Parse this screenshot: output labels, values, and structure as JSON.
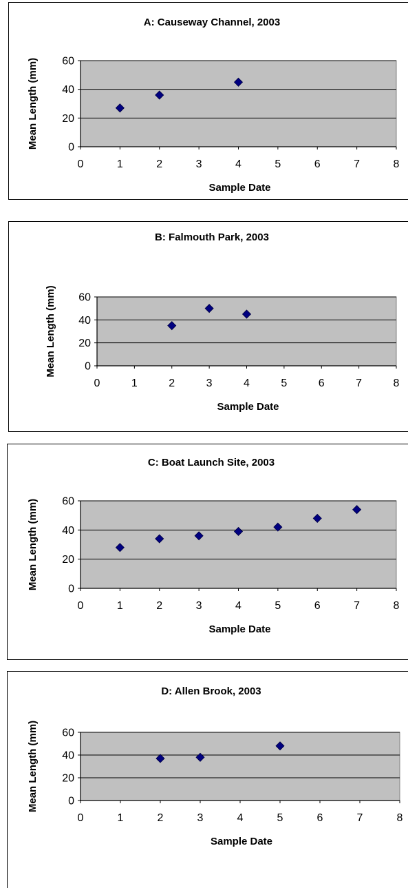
{
  "chart_data": [
    {
      "type": "scatter",
      "title": "A:  Causeway Channel, 2003",
      "xlabel": "Sample Date",
      "ylabel": "Mean Length (mm)",
      "xlim": [
        0,
        8
      ],
      "ylim": [
        0,
        60
      ],
      "xticks": [
        0,
        1,
        2,
        3,
        4,
        5,
        6,
        7,
        8
      ],
      "yticks": [
        0,
        20,
        40,
        60
      ],
      "grid": true,
      "legend": "none",
      "marker_color": "#000080",
      "plot_bg": "#C0C0C0",
      "points": [
        {
          "x": 1,
          "y": 27
        },
        {
          "x": 2,
          "y": 36
        },
        {
          "x": 4,
          "y": 45
        }
      ]
    },
    {
      "type": "scatter",
      "title": "B: Falmouth Park, 2003",
      "xlabel": "Sample Date",
      "ylabel": "Mean Length (mm)",
      "xlim": [
        0,
        8
      ],
      "ylim": [
        0,
        60
      ],
      "xticks": [
        0,
        1,
        2,
        3,
        4,
        5,
        6,
        7,
        8
      ],
      "yticks": [
        0,
        20,
        40,
        60
      ],
      "grid": true,
      "legend": "none",
      "marker_color": "#000080",
      "plot_bg": "#C0C0C0",
      "points": [
        {
          "x": 2,
          "y": 35
        },
        {
          "x": 3,
          "y": 50
        },
        {
          "x": 4,
          "y": 45
        }
      ]
    },
    {
      "type": "scatter",
      "title": "C:  Boat Launch Site,  2003",
      "xlabel": "Sample Date",
      "ylabel": "Mean Length (mm)",
      "xlim": [
        0,
        8
      ],
      "ylim": [
        0,
        60
      ],
      "xticks": [
        0,
        1,
        2,
        3,
        4,
        5,
        6,
        7,
        8
      ],
      "yticks": [
        0,
        20,
        40,
        60
      ],
      "grid": true,
      "legend": "none",
      "marker_color": "#000080",
      "plot_bg": "#C0C0C0",
      "points": [
        {
          "x": 1,
          "y": 28
        },
        {
          "x": 2,
          "y": 34
        },
        {
          "x": 3,
          "y": 36
        },
        {
          "x": 4,
          "y": 39
        },
        {
          "x": 5,
          "y": 42
        },
        {
          "x": 6,
          "y": 48
        },
        {
          "x": 7,
          "y": 54
        }
      ]
    },
    {
      "type": "scatter",
      "title": "D: Allen Brook, 2003",
      "xlabel": "Sample Date",
      "ylabel": "Mean Length (mm)",
      "xlim": [
        0,
        8
      ],
      "ylim": [
        0,
        60
      ],
      "xticks": [
        0,
        1,
        2,
        3,
        4,
        5,
        6,
        7,
        8
      ],
      "yticks": [
        0,
        20,
        40,
        60
      ],
      "grid": true,
      "legend": "none",
      "marker_color": "#000080",
      "plot_bg": "#C0C0C0",
      "points": [
        {
          "x": 2,
          "y": 37
        },
        {
          "x": 3,
          "y": 38
        },
        {
          "x": 5,
          "y": 48
        }
      ]
    }
  ]
}
